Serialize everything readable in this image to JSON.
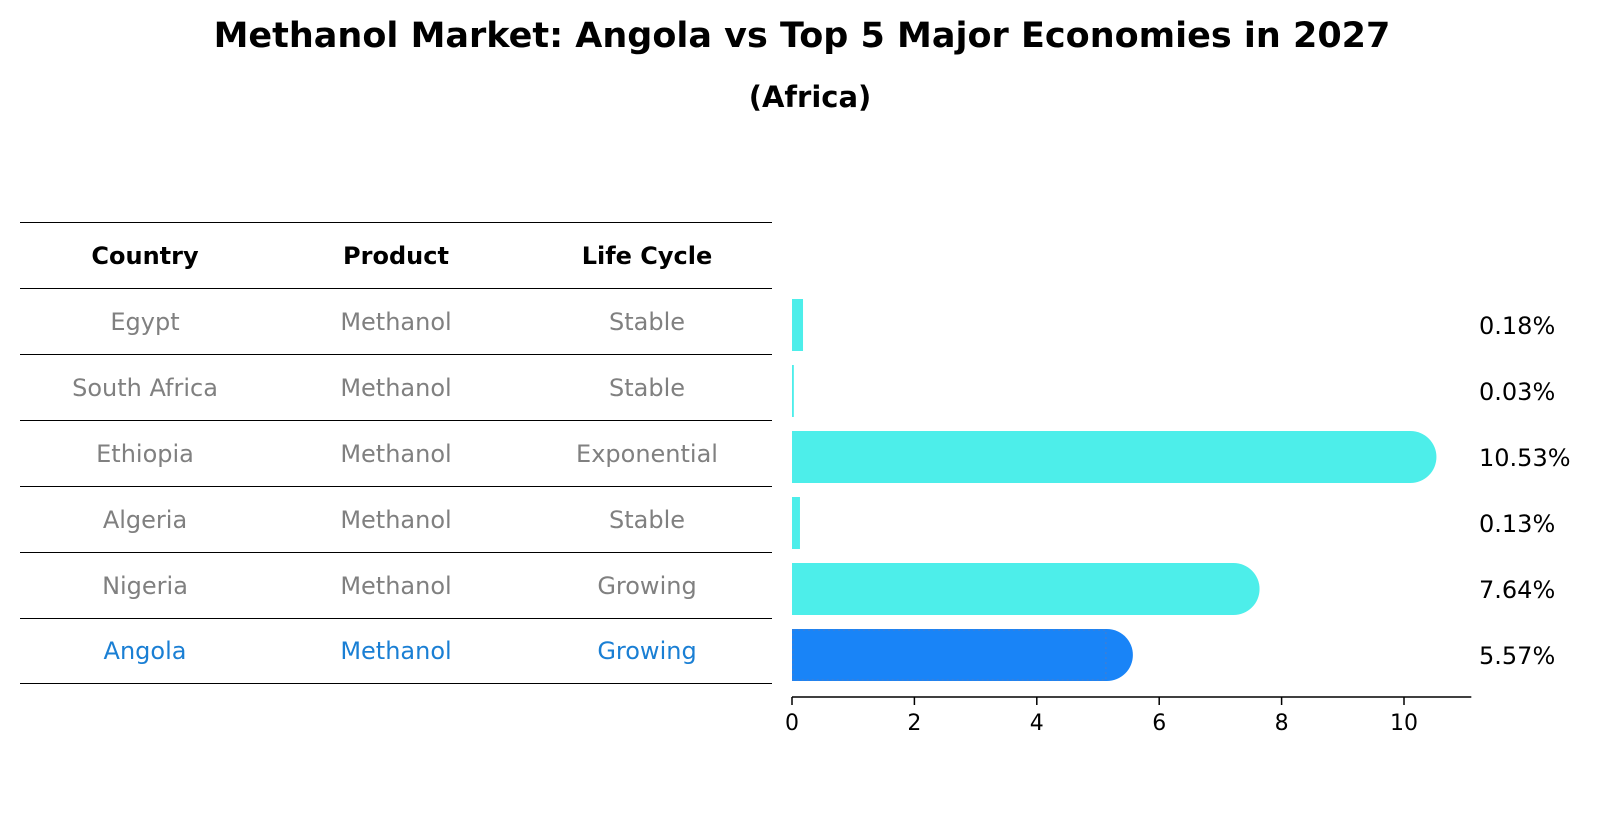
{
  "chart_data": {
    "type": "bar",
    "orientation": "horizontal",
    "title": "Methanol Market: Angola vs Top 5 Major Economies in 2027",
    "subtitle": "(Africa)",
    "table_headers": [
      "Country",
      "Product",
      "Life Cycle"
    ],
    "rows": [
      {
        "country": "Egypt",
        "product": "Methanol",
        "life_cycle": "Stable",
        "value": 0.18,
        "label": "0.18%",
        "highlight": false
      },
      {
        "country": "South Africa",
        "product": "Methanol",
        "life_cycle": "Stable",
        "value": 0.03,
        "label": "0.03%",
        "highlight": false
      },
      {
        "country": "Ethiopia",
        "product": "Methanol",
        "life_cycle": "Exponential",
        "value": 10.53,
        "label": "10.53%",
        "highlight": false
      },
      {
        "country": "Algeria",
        "product": "Methanol",
        "life_cycle": "Stable",
        "value": 0.13,
        "label": "0.13%",
        "highlight": false
      },
      {
        "country": "Nigeria",
        "product": "Methanol",
        "life_cycle": "Growing",
        "value": 7.64,
        "label": "7.64%",
        "highlight": false
      },
      {
        "country": "Angola",
        "product": "Methanol",
        "life_cycle": "Growing",
        "value": 5.57,
        "label": "5.57%",
        "highlight": true
      }
    ],
    "x_ticks": [
      "0",
      "2",
      "4",
      "6",
      "8",
      "10"
    ],
    "x_tick_values": [
      0,
      2,
      4,
      6,
      8,
      10
    ],
    "xlim": [
      0,
      11.1
    ],
    "colors": {
      "default_bar": "#4deeea",
      "highlight_bar": "#1984f7",
      "text_muted": "#808080",
      "text_highlight": "#1a7fd4"
    }
  }
}
